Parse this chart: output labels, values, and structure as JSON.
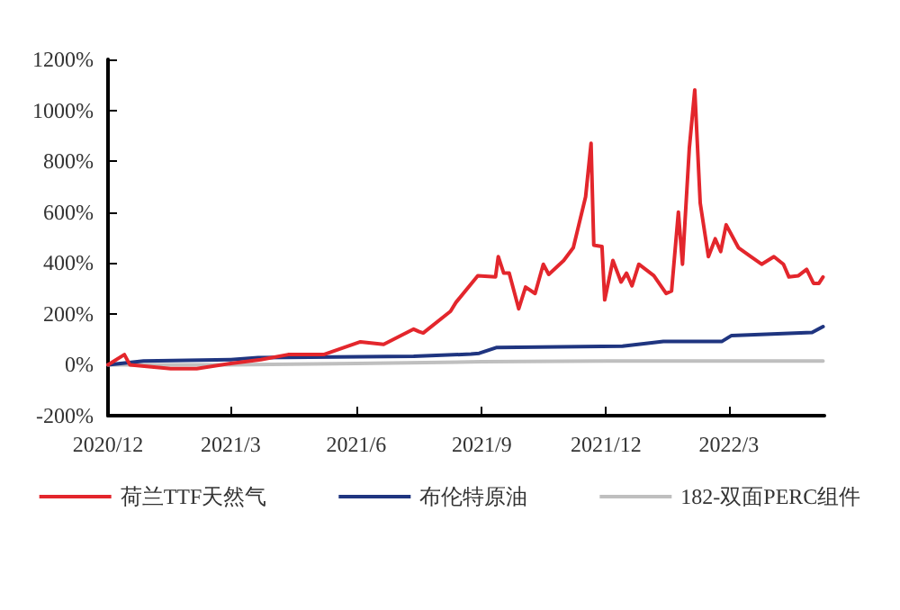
{
  "chart_data": {
    "type": "line",
    "xlim": [
      "2020-12-01",
      "2022-05-10"
    ],
    "xticks": [
      {
        "value": "2020-12-01",
        "label": "2020/12"
      },
      {
        "value": "2021-03-01",
        "label": "2021/3"
      },
      {
        "value": "2021-06-01",
        "label": "2021/6"
      },
      {
        "value": "2021-09-01",
        "label": "2021/9"
      },
      {
        "value": "2021-12-01",
        "label": "2021/12"
      },
      {
        "value": "2022-03-01",
        "label": "2022/3"
      }
    ],
    "ylim": [
      -200,
      1200
    ],
    "yticks": [
      {
        "value": -200,
        "label": "-200%"
      },
      {
        "value": 0,
        "label": "0%"
      },
      {
        "value": 200,
        "label": "200%"
      },
      {
        "value": 400,
        "label": "400%"
      },
      {
        "value": 600,
        "label": "600%"
      },
      {
        "value": 800,
        "label": "800%"
      },
      {
        "value": 1000,
        "label": "1000%"
      },
      {
        "value": 1200,
        "label": "1200%"
      }
    ],
    "grid": false,
    "legend": "bottom",
    "marker": "none",
    "line_style": "solid",
    "series": [
      {
        "name": "荷兰TTF天然气",
        "color": "#e3262c",
        "x": [
          "2020-12-01",
          "2020-12-13",
          "2020-12-17",
          "2021-01-16",
          "2021-02-04",
          "2021-03-01",
          "2021-03-23",
          "2021-04-12",
          "2021-05-08",
          "2021-06-04",
          "2021-06-21",
          "2021-07-13",
          "2021-07-17",
          "2021-07-20",
          "2021-08-09",
          "2021-08-13",
          "2021-08-29",
          "2021-09-11",
          "2021-09-13",
          "2021-09-17",
          "2021-09-21",
          "2021-09-28",
          "2021-10-03",
          "2021-10-10",
          "2021-10-16",
          "2021-10-20",
          "2021-10-31",
          "2021-11-07",
          "2021-11-16",
          "2021-11-20",
          "2021-11-22",
          "2021-11-28",
          "2021-11-30",
          "2021-12-06",
          "2021-12-12",
          "2021-12-16",
          "2021-12-20",
          "2021-12-25",
          "2022-01-05",
          "2022-01-14",
          "2022-01-18",
          "2022-01-23",
          "2022-01-26",
          "2022-01-31",
          "2022-02-04",
          "2022-02-08",
          "2022-02-14",
          "2022-02-19",
          "2022-02-23",
          "2022-02-27",
          "2022-03-08",
          "2022-03-17",
          "2022-03-25",
          "2022-04-03",
          "2022-04-10",
          "2022-04-14",
          "2022-04-21",
          "2022-04-27",
          "2022-05-02",
          "2022-05-06",
          "2022-05-09"
        ],
        "values": [
          0,
          40,
          0,
          -15,
          -15,
          5,
          20,
          40,
          40,
          90,
          80,
          140,
          130,
          125,
          210,
          245,
          350,
          345,
          425,
          360,
          360,
          220,
          305,
          280,
          395,
          355,
          410,
          460,
          660,
          870,
          470,
          465,
          255,
          410,
          325,
          360,
          310,
          395,
          350,
          280,
          290,
          600,
          395,
          850,
          1080,
          635,
          425,
          495,
          445,
          550,
          460,
          425,
          395,
          425,
          395,
          345,
          350,
          375,
          320,
          320,
          345
        ]
      },
      {
        "name": "布伦特原油",
        "color": "#1f3580",
        "x": [
          "2020-12-01",
          "2020-12-27",
          "2021-03-01",
          "2021-03-21",
          "2021-07-13",
          "2021-08-24",
          "2021-08-30",
          "2021-09-12",
          "2021-12-13",
          "2022-01-12",
          "2022-02-24",
          "2022-03-03",
          "2022-05-01",
          "2022-05-09"
        ],
        "values": [
          0,
          15,
          20,
          28,
          33,
          42,
          45,
          68,
          73,
          92,
          92,
          115,
          127,
          150
        ]
      },
      {
        "name": "182-双面PERC组件",
        "color": "#bfbfbf",
        "x": [
          "2020-12-01",
          "2021-03-01",
          "2021-06-01",
          "2021-09-01",
          "2021-12-01",
          "2022-03-01",
          "2022-05-09"
        ],
        "values": [
          0,
          0,
          5,
          12,
          15,
          15,
          15
        ]
      }
    ]
  }
}
